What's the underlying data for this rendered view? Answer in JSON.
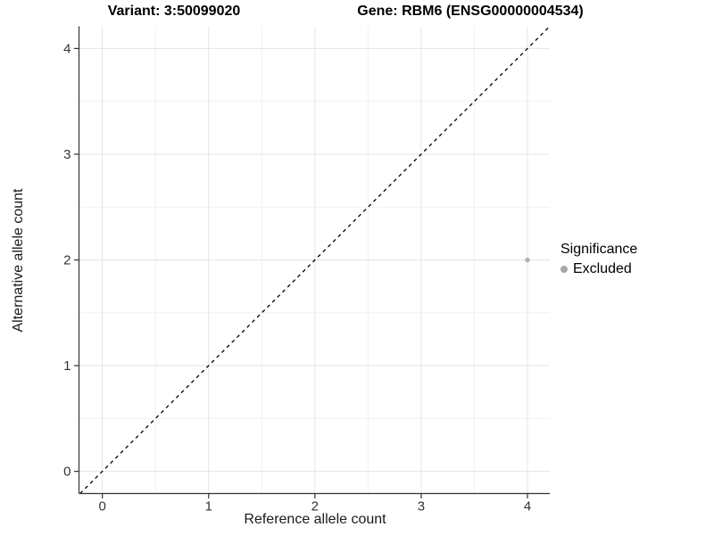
{
  "figure": {
    "titles": {
      "left": "Variant: 3:50099020",
      "right": "Gene: RBM6 (ENSG00000004534)"
    },
    "background": "#ffffff"
  },
  "chart_data": {
    "type": "scatter",
    "title": "",
    "xlabel": "Reference allele count",
    "ylabel": "Alternative allele count",
    "xlim": [
      -0.22,
      4.21
    ],
    "ylim": [
      -0.21,
      4.21
    ],
    "x_ticks": [
      0,
      1,
      2,
      3,
      4
    ],
    "y_ticks": [
      0,
      1,
      2,
      3,
      4
    ],
    "grid": {
      "major": true,
      "minor": true
    },
    "reference_line": {
      "type": "identity",
      "style": "dashed",
      "from": -0.21,
      "to": 4.21,
      "color": "#000000"
    },
    "series": [
      {
        "name": "Excluded",
        "color": "#b0b0b0",
        "radius": 2.7,
        "points": [
          [
            4,
            2
          ]
        ]
      }
    ],
    "legend": {
      "title": "Significance",
      "position": "right",
      "entries": [
        {
          "label": "Excluded",
          "color": "#a6a6a6"
        }
      ]
    }
  },
  "colors": {
    "grid_major": "#e4e4e4",
    "grid_minor": "#f1f1f1",
    "axis_line": "#333333",
    "tick_label": "#333333",
    "ref_line": "#000000"
  }
}
